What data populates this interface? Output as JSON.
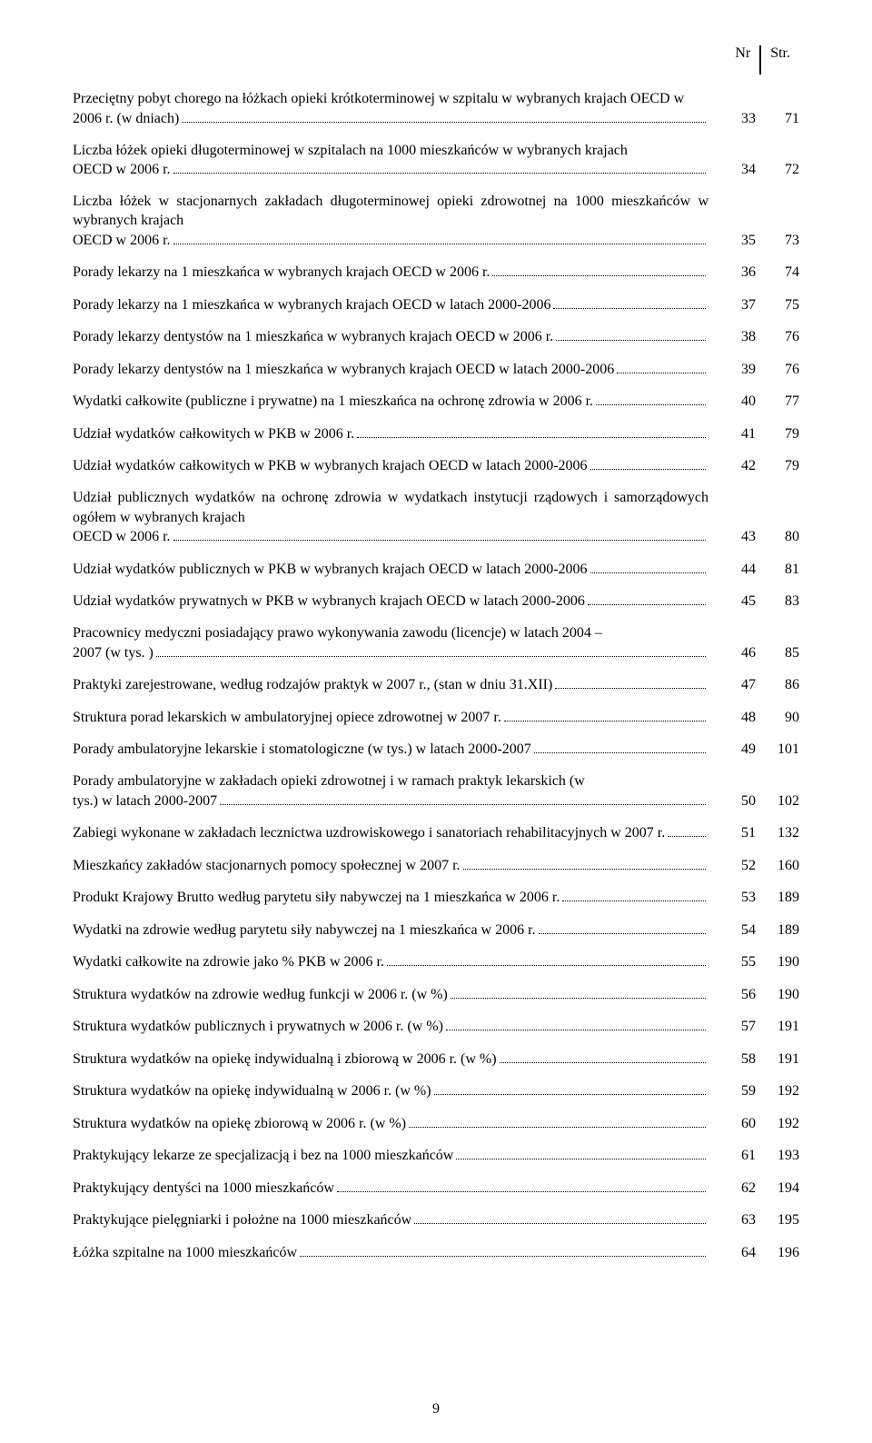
{
  "header": {
    "nr": "Nr",
    "str": "Str."
  },
  "footer": {
    "page": "9"
  },
  "rows": [
    {
      "text": "Przeciętny pobyt chorego na łóżkach opieki krótkoterminowej w szpitalu w wybranych krajach OECD w 2006 r. (w dniach)",
      "nr": "33",
      "str": "71",
      "multi": true
    },
    {
      "text": "Liczba łóżek opieki długoterminowej w szpitalach na 1000 mieszkańców w wybranych krajach OECD w 2006 r.",
      "nr": "34",
      "str": "72",
      "multi": true
    },
    {
      "text": "Liczba łóżek w stacjonarnych zakładach długoterminowej opieki zdrowotnej na 1000 mieszkańców w wybranych krajach OECD w 2006 r.",
      "nr": "35",
      "str": "73",
      "multi": true
    },
    {
      "text": "Porady lekarzy na 1 mieszkańca w wybranych krajach OECD w 2006 r.",
      "nr": "36",
      "str": "74"
    },
    {
      "text": "Porady lekarzy na 1 mieszkańca w wybranych krajach OECD w latach 2000-2006",
      "nr": "37",
      "str": "75"
    },
    {
      "text": "Porady lekarzy dentystów na 1 mieszkańca w wybranych krajach OECD w 2006 r.",
      "nr": "38",
      "str": "76"
    },
    {
      "text": "Porady lekarzy dentystów na 1 mieszkańca w wybranych krajach OECD w latach 2000-2006",
      "nr": "39",
      "str": "76"
    },
    {
      "text": "Wydatki całkowite (publiczne i prywatne) na 1 mieszkańca na ochronę zdrowia w 2006 r.",
      "nr": "40",
      "str": "77"
    },
    {
      "text": "Udział wydatków całkowitych w PKB w 2006 r.",
      "nr": "41",
      "str": "79"
    },
    {
      "text": "Udział wydatków całkowitych w PKB w wybranych krajach OECD w latach 2000-2006",
      "nr": "42",
      "str": "79"
    },
    {
      "text": "Udział publicznych wydatków na ochronę zdrowia w wydatkach instytucji rządowych i samorządowych ogółem w wybranych krajach OECD w 2006 r.",
      "nr": "43",
      "str": "80",
      "multi": true
    },
    {
      "text": "Udział wydatków publicznych w PKB w wybranych krajach OECD w latach 2000-2006",
      "nr": "44",
      "str": "81"
    },
    {
      "text": "Udział wydatków prywatnych w PKB w wybranych krajach OECD w latach 2000-2006",
      "nr": "45",
      "str": "83"
    },
    {
      "text": "Pracownicy medyczni posiadający prawo wykonywania zawodu (licencje) w latach 2004 – 2007 (w tys. )",
      "nr": "46",
      "str": "85",
      "multi": true
    },
    {
      "text": "Praktyki zarejestrowane, według rodzajów praktyk w 2007 r., (stan w dniu 31.XII)",
      "nr": "47",
      "str": "86"
    },
    {
      "text": "Struktura porad lekarskich w ambulatoryjnej opiece zdrowotnej w 2007 r.",
      "nr": "48",
      "str": "90"
    },
    {
      "text": "Porady ambulatoryjne lekarskie i stomatologiczne (w tys.) w latach 2000-2007",
      "nr": "49",
      "str": "101"
    },
    {
      "text": "Porady ambulatoryjne w zakładach opieki zdrowotnej i w ramach praktyk lekarskich (w tys.) w latach 2000-2007",
      "nr": "50",
      "str": "102",
      "multi": true
    },
    {
      "text": "Zabiegi wykonane w zakładach lecznictwa uzdrowiskowego i sanatoriach rehabilitacyjnych w 2007 r.",
      "nr": "51",
      "str": "132"
    },
    {
      "text": "Mieszkańcy zakładów stacjonarnych pomocy społecznej w 2007 r.",
      "nr": "52",
      "str": "160"
    },
    {
      "text": "Produkt Krajowy Brutto według parytetu siły nabywczej na 1 mieszkańca w 2006 r.",
      "nr": "53",
      "str": "189"
    },
    {
      "text": "Wydatki na zdrowie według parytetu siły nabywczej na 1 mieszkańca w 2006 r.",
      "nr": "54",
      "str": "189"
    },
    {
      "text": "Wydatki całkowite na zdrowie jako % PKB w 2006 r.",
      "nr": "55",
      "str": "190"
    },
    {
      "text": "Struktura wydatków na zdrowie według funkcji w 2006 r. (w %)",
      "nr": "56",
      "str": "190"
    },
    {
      "text": "Struktura wydatków publicznych i prywatnych w 2006 r. (w %)",
      "nr": "57",
      "str": "191"
    },
    {
      "text": "Struktura wydatków na opiekę indywidualną i zbiorową w 2006 r. (w %)",
      "nr": "58",
      "str": "191"
    },
    {
      "text": "Struktura wydatków na opiekę indywidualną w 2006 r. (w %)",
      "nr": "59",
      "str": "192"
    },
    {
      "text": "Struktura wydatków na opiekę zbiorową w 2006 r. (w %)",
      "nr": "60",
      "str": "192"
    },
    {
      "text": "Praktykujący lekarze ze specjalizacją i bez na 1000 mieszkańców",
      "nr": "61",
      "str": "193"
    },
    {
      "text": "Praktykujący dentyści na 1000 mieszkańców",
      "nr": "62",
      "str": "194"
    },
    {
      "text": "Praktykujące pielęgniarki i położne na 1000 mieszkańców",
      "nr": "63",
      "str": "195"
    },
    {
      "text": "Łóżka szpitalne na 1000 mieszkańców",
      "nr": "64",
      "str": "196"
    }
  ]
}
